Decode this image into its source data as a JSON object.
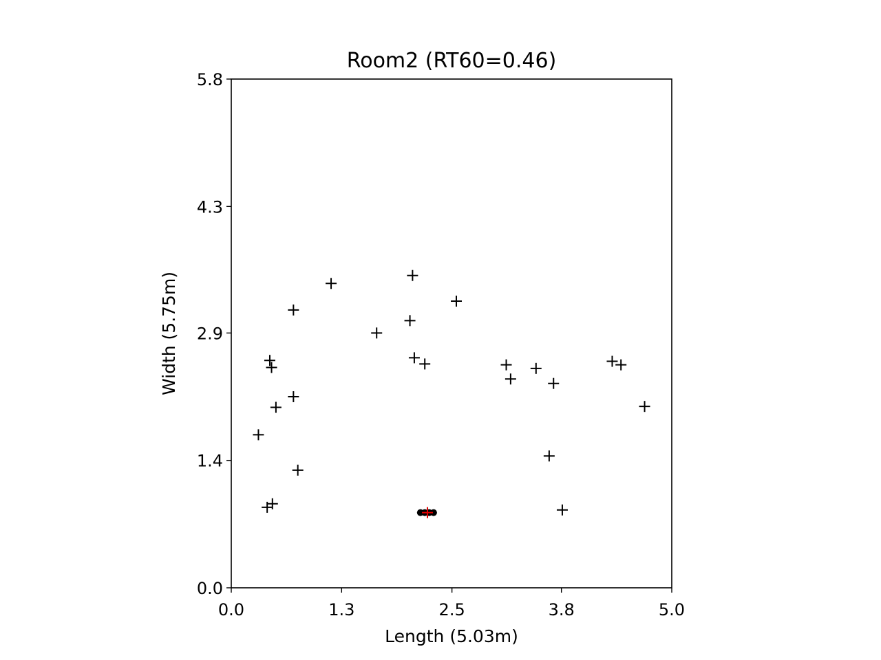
{
  "chart_data": {
    "type": "scatter",
    "title": "Room2 (RT60=0.46)",
    "xlabel": "Length (5.03m)",
    "ylabel": "Width (5.75m)",
    "xlim": [
      0,
      5.03
    ],
    "ylim": [
      0,
      5.75
    ],
    "xticks": [
      0.0,
      1.26,
      2.52,
      3.77,
      5.03
    ],
    "xtick_labels": [
      "0.0",
      "1.3",
      "2.5",
      "3.8",
      "5.0"
    ],
    "yticks": [
      0.0,
      1.44,
      2.88,
      4.31,
      5.75
    ],
    "ytick_labels": [
      "0.0",
      "1.4",
      "2.9",
      "4.3",
      "5.8"
    ],
    "grid": false,
    "colors": {
      "points": "#000000",
      "highlight": "#e00000",
      "array": "#000000"
    },
    "series": [
      {
        "marker": "plus",
        "color": "#000000",
        "points": [
          [
            0.44,
            2.57
          ],
          [
            0.46,
            2.49
          ],
          [
            0.71,
            3.14
          ],
          [
            1.14,
            3.44
          ],
          [
            1.66,
            2.88
          ],
          [
            2.07,
            3.53
          ],
          [
            2.04,
            3.02
          ],
          [
            2.09,
            2.6
          ],
          [
            2.21,
            2.53
          ],
          [
            2.57,
            3.24
          ],
          [
            3.14,
            2.52
          ],
          [
            3.19,
            2.36
          ],
          [
            3.48,
            2.48
          ],
          [
            3.68,
            2.31
          ],
          [
            4.35,
            2.56
          ],
          [
            4.45,
            2.52
          ],
          [
            4.72,
            2.05
          ],
          [
            0.51,
            2.04
          ],
          [
            0.71,
            2.16
          ],
          [
            0.31,
            1.73
          ],
          [
            0.76,
            1.33
          ],
          [
            3.63,
            1.49
          ],
          [
            0.41,
            0.91
          ],
          [
            0.47,
            0.95
          ],
          [
            3.78,
            0.88
          ]
        ]
      },
      {
        "marker": "dot",
        "color": "#000000",
        "points": [
          [
            2.16,
            0.85
          ],
          [
            2.21,
            0.85
          ],
          [
            2.26,
            0.85
          ],
          [
            2.31,
            0.85
          ]
        ]
      },
      {
        "marker": "plus",
        "color": "#e00000",
        "points": [
          [
            2.24,
            0.85
          ]
        ]
      }
    ]
  }
}
